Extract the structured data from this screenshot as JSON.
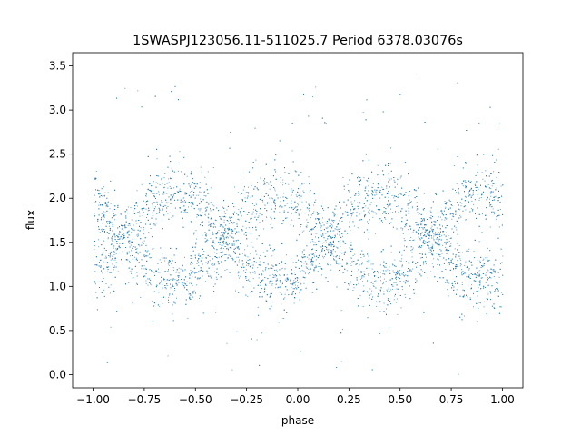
{
  "chart_data": {
    "type": "scatter",
    "title": "1SWASPJ123056.11-511025.7 Period 6378.03076s",
    "xlabel": "phase",
    "ylabel": "flux",
    "xlim": [
      -1.1,
      1.1
    ],
    "ylim": [
      -0.15,
      3.65
    ],
    "xticks": [
      -1.0,
      -0.75,
      -0.5,
      -0.25,
      0.0,
      0.25,
      0.5,
      0.75,
      1.0
    ],
    "xtick_labels": [
      "−1.00",
      "−0.75",
      "−0.50",
      "−0.25",
      "0.00",
      "0.25",
      "0.50",
      "0.75",
      "1.00"
    ],
    "yticks": [
      0.0,
      0.5,
      1.0,
      1.5,
      2.0,
      2.5,
      3.0,
      3.5
    ],
    "ytick_labels": [
      "0.0",
      "0.5",
      "1.0",
      "1.5",
      "2.0",
      "2.5",
      "3.0",
      "3.5"
    ],
    "grid": false,
    "legend": "none",
    "marker_color": "#1f77b4",
    "phase_range": [
      -1.0,
      1.0
    ],
    "band_mean_flux": 1.55,
    "band_semi_amplitude": 0.5,
    "band_period_phase": 1.0,
    "band_peak_phases": [
      -0.6,
      0.4
    ],
    "band_trough_phases": [
      -0.1,
      0.9
    ],
    "scatter_sigma": 0.18,
    "outlier_range": [
      0.0,
      3.5
    ]
  }
}
